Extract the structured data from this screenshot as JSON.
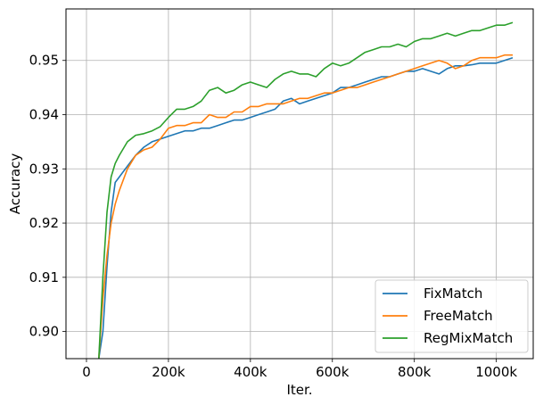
{
  "chart_data": {
    "type": "line",
    "xlabel": "Iter.",
    "ylabel": "Accuracy",
    "xlim": [
      -50000,
      1090000
    ],
    "ylim": [
      0.895,
      0.9595
    ],
    "grid": true,
    "legend_position": "bottom-right",
    "x_ticks": [
      {
        "value": 0,
        "label": "0"
      },
      {
        "value": 200000,
        "label": "200k"
      },
      {
        "value": 400000,
        "label": "400k"
      },
      {
        "value": 600000,
        "label": "600k"
      },
      {
        "value": 800000,
        "label": "800k"
      },
      {
        "value": 1000000,
        "label": "1000k"
      }
    ],
    "y_ticks": [
      {
        "value": 0.9,
        "label": "0.90"
      },
      {
        "value": 0.91,
        "label": "0.91"
      },
      {
        "value": 0.92,
        "label": "0.92"
      },
      {
        "value": 0.93,
        "label": "0.93"
      },
      {
        "value": 0.94,
        "label": "0.94"
      },
      {
        "value": 0.95,
        "label": "0.95"
      }
    ],
    "series": [
      {
        "name": "FixMatch",
        "color": "#1f77b4",
        "x": [
          30000,
          40000,
          50000,
          60000,
          70000,
          80000,
          100000,
          120000,
          140000,
          160000,
          180000,
          200000,
          220000,
          240000,
          260000,
          280000,
          300000,
          320000,
          340000,
          360000,
          380000,
          400000,
          420000,
          440000,
          460000,
          480000,
          500000,
          520000,
          540000,
          560000,
          580000,
          600000,
          620000,
          640000,
          660000,
          680000,
          700000,
          720000,
          740000,
          760000,
          780000,
          800000,
          820000,
          840000,
          860000,
          880000,
          900000,
          920000,
          940000,
          960000,
          980000,
          1000000,
          1020000,
          1040000
        ],
        "y": [
          0.895,
          0.9,
          0.912,
          0.922,
          0.9275,
          0.9285,
          0.9305,
          0.9325,
          0.934,
          0.935,
          0.9355,
          0.936,
          0.9365,
          0.937,
          0.937,
          0.9375,
          0.9375,
          0.938,
          0.9385,
          0.939,
          0.939,
          0.9395,
          0.94,
          0.9405,
          0.941,
          0.9425,
          0.943,
          0.942,
          0.9425,
          0.943,
          0.9435,
          0.944,
          0.945,
          0.945,
          0.9455,
          0.946,
          0.9465,
          0.947,
          0.947,
          0.9475,
          0.948,
          0.948,
          0.9485,
          0.948,
          0.9475,
          0.9485,
          0.949,
          0.949,
          0.9492,
          0.9495,
          0.9495,
          0.9495,
          0.95,
          0.9505
        ]
      },
      {
        "name": "FreeMatch",
        "color": "#ff7f0e",
        "x": [
          30000,
          40000,
          50000,
          60000,
          70000,
          80000,
          100000,
          120000,
          140000,
          160000,
          180000,
          200000,
          220000,
          240000,
          260000,
          280000,
          300000,
          320000,
          340000,
          360000,
          380000,
          400000,
          420000,
          440000,
          460000,
          480000,
          500000,
          520000,
          540000,
          560000,
          580000,
          600000,
          620000,
          640000,
          660000,
          680000,
          700000,
          720000,
          740000,
          760000,
          780000,
          800000,
          820000,
          840000,
          860000,
          880000,
          900000,
          920000,
          940000,
          960000,
          980000,
          1000000,
          1020000,
          1040000
        ],
        "y": [
          0.895,
          0.906,
          0.914,
          0.92,
          0.9235,
          0.926,
          0.93,
          0.9325,
          0.9335,
          0.934,
          0.9355,
          0.9375,
          0.938,
          0.938,
          0.9385,
          0.9385,
          0.94,
          0.9395,
          0.9395,
          0.9405,
          0.9405,
          0.9415,
          0.9415,
          0.942,
          0.942,
          0.942,
          0.9425,
          0.943,
          0.943,
          0.9435,
          0.944,
          0.944,
          0.9445,
          0.945,
          0.945,
          0.9455,
          0.946,
          0.9465,
          0.947,
          0.9475,
          0.948,
          0.9485,
          0.949,
          0.9495,
          0.95,
          0.9495,
          0.9485,
          0.949,
          0.95,
          0.9505,
          0.9505,
          0.9505,
          0.951,
          0.951
        ]
      },
      {
        "name": "RegMixMatch",
        "color": "#2ca02c",
        "x": [
          30000,
          40000,
          50000,
          60000,
          70000,
          80000,
          100000,
          120000,
          140000,
          160000,
          180000,
          200000,
          220000,
          240000,
          260000,
          280000,
          300000,
          320000,
          340000,
          360000,
          380000,
          400000,
          420000,
          440000,
          460000,
          480000,
          500000,
          520000,
          540000,
          560000,
          580000,
          600000,
          620000,
          640000,
          660000,
          680000,
          700000,
          720000,
          740000,
          760000,
          780000,
          800000,
          820000,
          840000,
          860000,
          880000,
          900000,
          920000,
          940000,
          960000,
          980000,
          1000000,
          1020000,
          1040000
        ],
        "y": [
          0.895,
          0.91,
          0.922,
          0.9285,
          0.931,
          0.9325,
          0.935,
          0.9362,
          0.9365,
          0.937,
          0.9378,
          0.9395,
          0.941,
          0.941,
          0.9415,
          0.9425,
          0.9445,
          0.945,
          0.944,
          0.9445,
          0.9455,
          0.946,
          0.9455,
          0.945,
          0.9465,
          0.9475,
          0.948,
          0.9475,
          0.9475,
          0.947,
          0.9485,
          0.9495,
          0.949,
          0.9495,
          0.9505,
          0.9515,
          0.952,
          0.9525,
          0.9525,
          0.953,
          0.9525,
          0.9535,
          0.954,
          0.954,
          0.9545,
          0.955,
          0.9545,
          0.955,
          0.9555,
          0.9555,
          0.956,
          0.9565,
          0.9565,
          0.957
        ]
      }
    ]
  }
}
